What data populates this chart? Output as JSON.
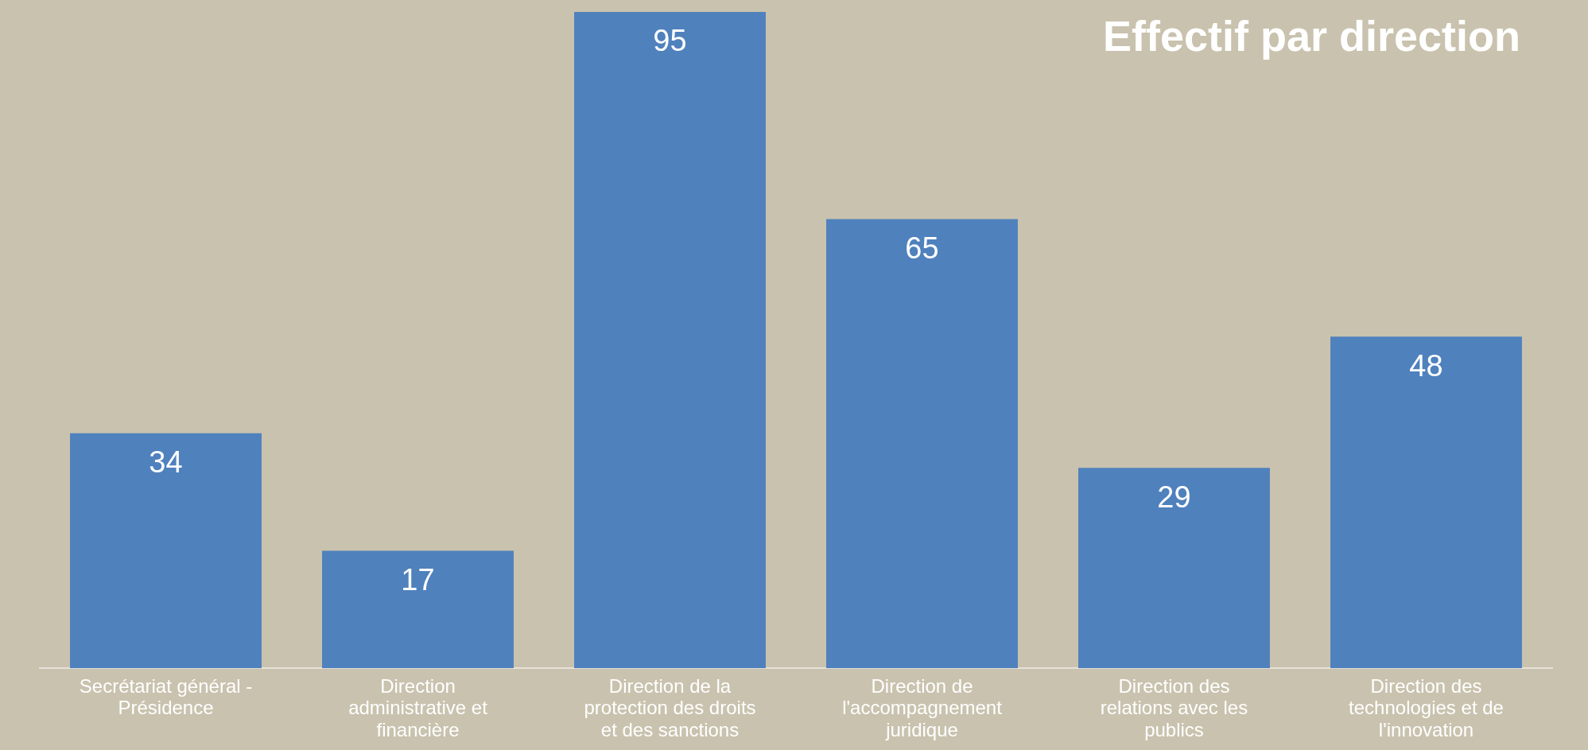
{
  "chart_data": {
    "type": "bar",
    "title": "Effectif par direction",
    "categories": [
      "Secrétariat général - Présidence",
      "Direction administrative et financière",
      "Direction de la protection des droits et des sanctions",
      "Direction de l'accompagnement juridique",
      "Direction des relations avec les publics",
      "Direction des technologies et de l'innovation"
    ],
    "values": [
      34,
      17,
      95,
      65,
      29,
      48
    ],
    "color": "#4f81bd",
    "data_labels": true,
    "grid": false,
    "legend": false
  }
}
